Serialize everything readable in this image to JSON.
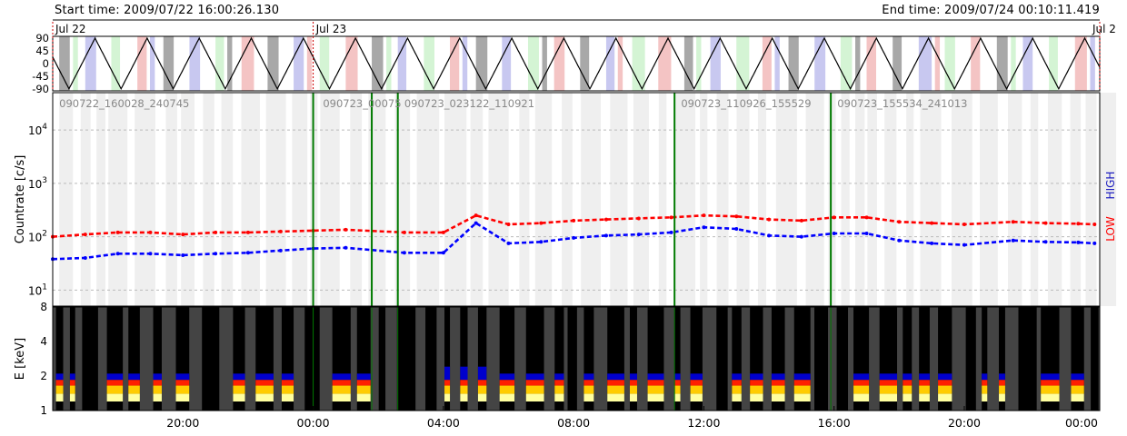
{
  "header": {
    "start_time": "Start time: 2009/07/22 16:00:26.130",
    "end_time": "End time: 2009/07/24 00:10:11.419"
  },
  "chart_data": [
    {
      "type": "line",
      "panel": "pointing",
      "date_labels": [
        "Jul 22",
        "Jul 23",
        "Jul 2"
      ],
      "y_ticks": [
        "90",
        "45",
        "0",
        "-45",
        "-90"
      ],
      "ylim": [
        -90,
        90
      ],
      "series": [
        {
          "values_description": "triangle wave between -90 and 90",
          "period_hours": 1.6
        }
      ],
      "background_colors": {
        "gray": "#a8a8a8",
        "red": "#f4c4c4",
        "green": "#b8e6b8",
        "blue": "#c8c8f0",
        "lightgreen": "#d4f4d4"
      }
    },
    {
      "type": "scatter",
      "panel": "countrate",
      "ylabel": "Countrate [c/s]",
      "yscale": "log",
      "ylim": [
        5,
        50000
      ],
      "y_ticks": [
        "10^4",
        "10^3",
        "10^2",
        "10^1"
      ],
      "right_labels": {
        "low": "LOW",
        "high": "HIGH"
      },
      "segment_labels": [
        "090722_160028_240745",
        "090723_00075",
        "090723_023122_110921",
        "090723_110926_155529",
        "090723_155534_241013"
      ],
      "segment_boundaries_hours": [
        8.0,
        9.8,
        10.6,
        19.1,
        23.9
      ],
      "series": [
        {
          "name": "LOW",
          "color": "#ff0000",
          "x_hours": [
            0.0,
            1.0,
            2.0,
            3.0,
            4.0,
            5.0,
            6.0,
            7.0,
            8.0,
            9.0,
            10.8,
            12.0,
            13.0,
            14.0,
            15.0,
            16.0,
            17.0,
            18.0,
            19.0,
            20.0,
            21.0,
            22.0,
            23.0,
            24.0,
            25.0,
            26.0,
            27.0,
            28.0,
            29.5,
            30.5,
            31.5,
            32.0
          ],
          "y": [
            100,
            110,
            120,
            120,
            110,
            120,
            120,
            125,
            130,
            135,
            120,
            120,
            250,
            170,
            180,
            200,
            210,
            220,
            230,
            250,
            240,
            210,
            200,
            230,
            230,
            190,
            180,
            170,
            190,
            180,
            175,
            170
          ]
        },
        {
          "name": "HIGH",
          "color": "#0000ff",
          "x_hours": [
            0.0,
            1.0,
            2.0,
            3.0,
            4.0,
            5.0,
            6.0,
            7.0,
            8.0,
            9.0,
            10.8,
            12.0,
            13.0,
            14.0,
            15.0,
            16.0,
            17.0,
            18.0,
            19.0,
            20.0,
            21.0,
            22.0,
            23.0,
            24.0,
            25.0,
            26.0,
            27.0,
            28.0,
            29.5,
            30.5,
            31.5,
            32.0
          ],
          "y": [
            38,
            40,
            48,
            48,
            45,
            48,
            50,
            55,
            60,
            62,
            50,
            50,
            180,
            75,
            80,
            95,
            105,
            110,
            120,
            150,
            140,
            105,
            100,
            115,
            115,
            85,
            75,
            70,
            85,
            80,
            78,
            75
          ]
        }
      ]
    },
    {
      "type": "heatmap",
      "panel": "spectrogram",
      "ylabel": "E [keV]",
      "y_ticks": [
        "8",
        "4",
        "2",
        "1"
      ],
      "x_ticks": [
        "20:00",
        "00:00",
        "04:00",
        "08:00",
        "12:00",
        "16:00",
        "20:00",
        "00:00"
      ],
      "x_tick_hours": [
        4,
        8,
        12,
        16,
        20,
        24,
        28,
        32
      ],
      "xlim_hours": [
        0,
        32.16
      ],
      "colors": {
        "background": "#444444",
        "gap": "#000000",
        "low": "#ffffa0",
        "mid": "#ffcc00",
        "high": "#ff2000",
        "top": "#0000cc"
      }
    }
  ]
}
